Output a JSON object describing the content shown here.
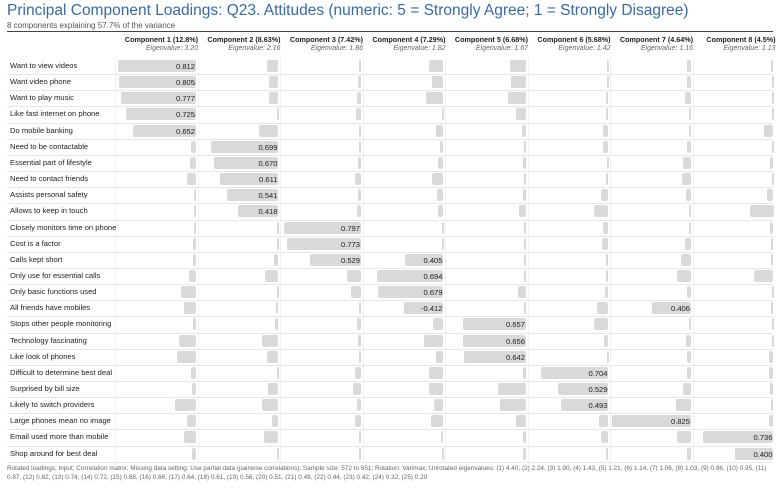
{
  "title": "Principal Component Loadings: Q23. Attitudes (numeric: 5 = Strongly Agree; 1 = Strongly Disagree)",
  "subtitle": "8 components explaining 57.7% of the variance",
  "components": [
    {
      "header": "Component 1 (12.8%)",
      "eigenvalue": "Eigenvalue: 3.20"
    },
    {
      "header": "Component 2 (8.63%)",
      "eigenvalue": "Eigenvalue: 2.16"
    },
    {
      "header": "Component 3 (7.42%)",
      "eigenvalue": "Eigenvalue: 1.86"
    },
    {
      "header": "Component 4 (7.29%)",
      "eigenvalue": "Eigenvalue: 1.82"
    },
    {
      "header": "Component 5 (6.68%)",
      "eigenvalue": "Eigenvalue: 1.67"
    },
    {
      "header": "Component 6 (5.68%)",
      "eigenvalue": "Eigenvalue: 1.42"
    },
    {
      "header": "Component 7 (4.64%)",
      "eigenvalue": "Eigenvalue: 1.16"
    },
    {
      "header": "Component 8 (4.5%)",
      "eigenvalue": "Eigenvalue: 1.13"
    }
  ],
  "footer": "Rotated loadings; Input: Correlation matrix; Missing data setting: Use partial data (pairwise correlations); Sample size: 572 to 651; Rotation: Varimax; Unrotated eigenvalues: (1) 4.40, (2) 2.24, (3) 1.90, (4) 1.43, (5) 1.21, (6) 1.14, (7) 1.06, (8) 1.03, (9) 0.96, (10) 0.95, (11) 0.87, (12) 0.82, (13) 0.74, (14) 0.72, (15) 0.68, (16) 0.66, (17) 0.64, (18) 0.61, (19) 0.56, (20) 0.51, (21) 0.49, (22) 0.44, (23) 0.42, (24) 0.32, (25) 0.20",
  "chart_data": {
    "type": "table",
    "title": "Principal Component Loadings: Q23. Attitudes (numeric: 5 = Strongly Agree; 1 = Strongly Disagree)",
    "columns": [
      "Component 1 (12.8%)",
      "Component 2 (8.63%)",
      "Component 3 (7.42%)",
      "Component 4 (7.29%)",
      "Component 5 (6.68%)",
      "Component 6 (5.68%)",
      "Component 7 (4.64%)",
      "Component 8 (4.5%)"
    ],
    "rows": [
      {
        "label": "Want to view videos",
        "loadings": [
          0.812,
          0.12,
          0.02,
          0.15,
          0.17,
          0.01,
          0.04,
          0.03
        ]
      },
      {
        "label": "Want video phone",
        "loadings": [
          0.805,
          0.1,
          0.03,
          0.12,
          0.16,
          0.02,
          0.04,
          0.02
        ]
      },
      {
        "label": "Want to play music",
        "loadings": [
          0.777,
          0.1,
          0.04,
          0.18,
          0.19,
          0.03,
          0.06,
          0.02
        ]
      },
      {
        "label": "Like fast internet on phone",
        "loadings": [
          0.725,
          0.02,
          0.05,
          0.01,
          0.1,
          0.03,
          0.01,
          0.01
        ]
      },
      {
        "label": "Do mobile banking",
        "loadings": [
          0.652,
          0.2,
          0.02,
          0.08,
          0.04,
          0.06,
          0.02,
          0.1
        ]
      },
      {
        "label": "Need to be contactable",
        "loadings": [
          0.05,
          0.699,
          0.02,
          0.04,
          0.02,
          0.06,
          0.04,
          0.02
        ]
      },
      {
        "label": "Essential part of lifestyle",
        "loadings": [
          0.06,
          0.67,
          0.03,
          0.06,
          0.03,
          0.02,
          0.08,
          0.04
        ]
      },
      {
        "label": "Need to contact friends",
        "loadings": [
          0.09,
          0.611,
          0.06,
          0.12,
          0.02,
          0.03,
          0.09,
          0.02
        ]
      },
      {
        "label": "Assists personal safety",
        "loadings": [
          0.02,
          0.541,
          0.03,
          0.07,
          0.03,
          0.08,
          0.05,
          0.07
        ]
      },
      {
        "label": "Allows to keep in touch",
        "loadings": [
          0.01,
          0.418,
          0.04,
          0.06,
          0.07,
          0.15,
          0.02,
          0.25
        ]
      },
      {
        "label": "Closely monitors time on phone",
        "loadings": [
          0.01,
          0.02,
          0.797,
          0.01,
          0.02,
          0.06,
          0.02,
          0.04
        ]
      },
      {
        "label": "Cost is a factor",
        "loadings": [
          0.03,
          0.02,
          0.773,
          0.02,
          0.02,
          0.07,
          0.06,
          0.03
        ]
      },
      {
        "label": "Calls kept short",
        "loadings": [
          0.03,
          0.05,
          0.529,
          0.405,
          0.02,
          0.03,
          0.1,
          0.03
        ]
      },
      {
        "label": "Only use for essential calls",
        "loadings": [
          0.07,
          0.14,
          0.15,
          0.694,
          0.02,
          0.03,
          0.15,
          0.2
        ]
      },
      {
        "label": "Only basic functions used",
        "loadings": [
          0.16,
          0.01,
          0.1,
          0.679,
          0.08,
          0.04,
          0.04,
          0.02
        ]
      },
      {
        "label": "All friends have mobiles",
        "loadings": [
          0.12,
          0.03,
          0.02,
          -0.412,
          0.01,
          0.12,
          0.406,
          0.03
        ]
      },
      {
        "label": "Stops other people monitoring",
        "loadings": [
          0.03,
          0.04,
          0.04,
          0.11,
          0.657,
          0.15,
          0.01,
          0.01
        ]
      },
      {
        "label": "Technology fascinating",
        "loadings": [
          0.18,
          0.17,
          0.03,
          0.2,
          0.656,
          0.05,
          0.05,
          0.01
        ]
      },
      {
        "label": "Like look of phones",
        "loadings": [
          0.2,
          0.12,
          0.02,
          0.08,
          0.642,
          0.02,
          0.04,
          0.05
        ]
      },
      {
        "label": "Difficult to determine best deal",
        "loadings": [
          0.05,
          0.02,
          0.06,
          0.15,
          0.03,
          0.704,
          0.04,
          0.05
        ]
      },
      {
        "label": "Surprised by bill size",
        "loadings": [
          0.04,
          0.11,
          0.08,
          0.15,
          0.29,
          0.529,
          0.08,
          0.04
        ]
      },
      {
        "label": "Likely to switch providers",
        "loadings": [
          0.22,
          0.17,
          0.04,
          0.1,
          0.27,
          0.493,
          0.16,
          0.03
        ]
      },
      {
        "label": "Large phones mean no image",
        "loadings": [
          0.09,
          0.07,
          0.06,
          0.13,
          0.1,
          0.1,
          0.825,
          0.05
        ]
      },
      {
        "label": "Email used more than mobile",
        "loadings": [
          0.12,
          0.15,
          0.02,
          0.03,
          0.03,
          0.08,
          0.15,
          0.736
        ]
      },
      {
        "label": "Shop around for best deal",
        "loadings": [
          0.04,
          0.02,
          0.02,
          0.02,
          0.03,
          0.03,
          0.04,
          0.4
        ]
      }
    ]
  }
}
